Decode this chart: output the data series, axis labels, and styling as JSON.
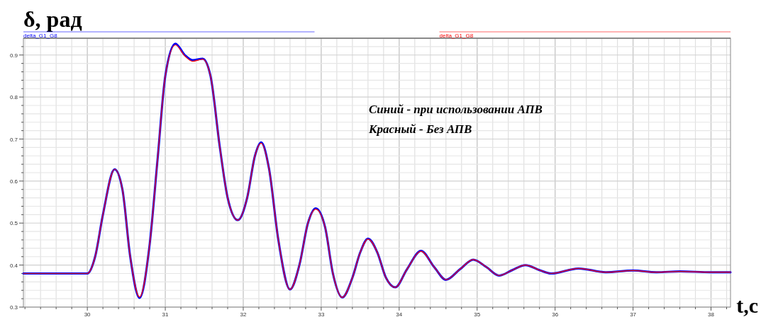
{
  "chart_data": {
    "type": "line",
    "title": "δ, рад",
    "xlabel": "t,c",
    "legend": "top",
    "grid": true,
    "marker": "none",
    "line_style": "solid",
    "annotations": [
      "Синий - при использовании АПВ",
      "Красный - Без АПВ"
    ],
    "xlim": [
      29.18,
      38.25
    ],
    "ylim": [
      0.3,
      0.94
    ],
    "xticks": [
      30,
      31,
      32,
      33,
      34,
      35,
      36,
      37,
      38,
      {
        "value": 29.2,
        "label": null
      },
      {
        "value": 29.4,
        "label": null
      },
      {
        "value": 29.6,
        "label": null
      },
      {
        "value": 29.8,
        "label": null
      },
      {
        "value": 30.2,
        "label": null
      },
      {
        "value": 30.4,
        "label": null
      },
      {
        "value": 30.6,
        "label": null
      },
      {
        "value": 30.8,
        "label": null
      },
      {
        "value": 31.2,
        "label": null
      },
      {
        "value": 31.4,
        "label": null
      },
      {
        "value": 31.6,
        "label": null
      },
      {
        "value": 31.8,
        "label": null
      },
      {
        "value": 32.2,
        "label": null
      },
      {
        "value": 32.4,
        "label": null
      },
      {
        "value": 32.6,
        "label": null
      },
      {
        "value": 32.8,
        "label": null
      },
      {
        "value": 33.2,
        "label": null
      },
      {
        "value": 33.4,
        "label": null
      },
      {
        "value": 33.6,
        "label": null
      },
      {
        "value": 33.8,
        "label": null
      },
      {
        "value": 34.2,
        "label": null
      },
      {
        "value": 34.4,
        "label": null
      },
      {
        "value": 34.6,
        "label": null
      },
      {
        "value": 34.8,
        "label": null
      },
      {
        "value": 35.2,
        "label": null
      },
      {
        "value": 35.4,
        "label": null
      },
      {
        "value": 35.6,
        "label": null
      },
      {
        "value": 35.8,
        "label": null
      },
      {
        "value": 36.2,
        "label": null
      },
      {
        "value": 36.4,
        "label": null
      },
      {
        "value": 36.6,
        "label": null
      },
      {
        "value": 36.8,
        "label": null
      },
      {
        "value": 37.2,
        "label": null
      },
      {
        "value": 37.4,
        "label": null
      },
      {
        "value": 37.6,
        "label": null
      },
      {
        "value": 37.8,
        "label": null
      },
      {
        "value": 38.2,
        "label": null
      }
    ],
    "yticks": [
      0.3,
      0.4,
      0.5,
      0.6,
      0.7,
      0.8,
      0.9,
      {
        "value": 0.32,
        "label": null
      },
      {
        "value": 0.34,
        "label": null
      },
      {
        "value": 0.36,
        "label": null
      },
      {
        "value": 0.38,
        "label": null
      },
      {
        "value": 0.42,
        "label": null
      },
      {
        "value": 0.44,
        "label": null
      },
      {
        "value": 0.46,
        "label": null
      },
      {
        "value": 0.48,
        "label": null
      },
      {
        "value": 0.52,
        "label": null
      },
      {
        "value": 0.54,
        "label": null
      },
      {
        "value": 0.56,
        "label": null
      },
      {
        "value": 0.58,
        "label": null
      },
      {
        "value": 0.62,
        "label": null
      },
      {
        "value": 0.64,
        "label": null
      },
      {
        "value": 0.66,
        "label": null
      },
      {
        "value": 0.68,
        "label": null
      },
      {
        "value": 0.72,
        "label": null
      },
      {
        "value": 0.74,
        "label": null
      },
      {
        "value": 0.76,
        "label": null
      },
      {
        "value": 0.78,
        "label": null
      },
      {
        "value": 0.82,
        "label": null
      },
      {
        "value": 0.84,
        "label": null
      },
      {
        "value": 0.86,
        "label": null
      },
      {
        "value": 0.88,
        "label": null
      },
      {
        "value": 0.92,
        "label": null
      }
    ],
    "series": [
      {
        "name": "delta_G1_G8",
        "color": "#0000ff",
        "x": [
          29.18,
          30.0,
          30.1,
          30.2,
          30.35,
          30.45,
          30.55,
          30.67,
          30.8,
          30.9,
          31.0,
          31.13,
          31.25,
          31.35,
          31.48,
          31.58,
          31.7,
          31.8,
          31.93,
          32.05,
          32.15,
          32.23,
          32.33,
          32.45,
          32.6,
          32.72,
          32.83,
          32.93,
          33.05,
          33.15,
          33.27,
          33.4,
          33.5,
          33.6,
          33.72,
          33.83,
          33.95,
          34.1,
          34.28,
          34.45,
          34.6,
          34.78,
          34.95,
          35.12,
          35.28,
          35.45,
          35.62,
          35.8,
          35.95,
          36.3,
          36.65,
          37.0,
          37.3,
          37.6,
          38.0,
          38.25
        ],
        "values": [
          0.38,
          0.38,
          0.42,
          0.52,
          0.628,
          0.58,
          0.42,
          0.322,
          0.45,
          0.65,
          0.85,
          0.927,
          0.9,
          0.888,
          0.891,
          0.85,
          0.68,
          0.56,
          0.507,
          0.56,
          0.66,
          0.692,
          0.63,
          0.46,
          0.342,
          0.4,
          0.5,
          0.535,
          0.49,
          0.38,
          0.323,
          0.37,
          0.43,
          0.463,
          0.43,
          0.37,
          0.347,
          0.39,
          0.434,
          0.395,
          0.365,
          0.39,
          0.413,
          0.395,
          0.375,
          0.388,
          0.4,
          0.388,
          0.38,
          0.392,
          0.383,
          0.387,
          0.383,
          0.385,
          0.383,
          0.383
        ]
      },
      {
        "name": "delta_G1_G8",
        "color": "#ff0000",
        "x": [
          29.18,
          30.0,
          30.1,
          30.2,
          30.35,
          30.45,
          30.55,
          30.67,
          30.8,
          30.9,
          31.0,
          31.13,
          31.25,
          31.35,
          31.48,
          31.58,
          31.7,
          31.8,
          31.93,
          32.05,
          32.15,
          32.23,
          32.33,
          32.45,
          32.6,
          32.72,
          32.83,
          32.93,
          33.05,
          33.15,
          33.27,
          33.4,
          33.5,
          33.6,
          33.72,
          33.83,
          33.95,
          34.1,
          34.28,
          34.45,
          34.6,
          34.78,
          34.95,
          35.12,
          35.28,
          35.45,
          35.62,
          35.8,
          35.95,
          36.3,
          36.65,
          37.0,
          37.3,
          37.6,
          38.0,
          38.25
        ],
        "values": [
          0.38,
          0.38,
          0.42,
          0.52,
          0.628,
          0.58,
          0.42,
          0.324,
          0.45,
          0.65,
          0.85,
          0.924,
          0.898,
          0.885,
          0.89,
          0.85,
          0.68,
          0.56,
          0.507,
          0.56,
          0.66,
          0.69,
          0.63,
          0.46,
          0.342,
          0.4,
          0.5,
          0.533,
          0.49,
          0.38,
          0.323,
          0.37,
          0.43,
          0.462,
          0.43,
          0.37,
          0.347,
          0.39,
          0.433,
          0.395,
          0.365,
          0.39,
          0.413,
          0.395,
          0.375,
          0.388,
          0.4,
          0.388,
          0.38,
          0.392,
          0.383,
          0.387,
          0.383,
          0.385,
          0.383,
          0.383
        ]
      }
    ]
  }
}
